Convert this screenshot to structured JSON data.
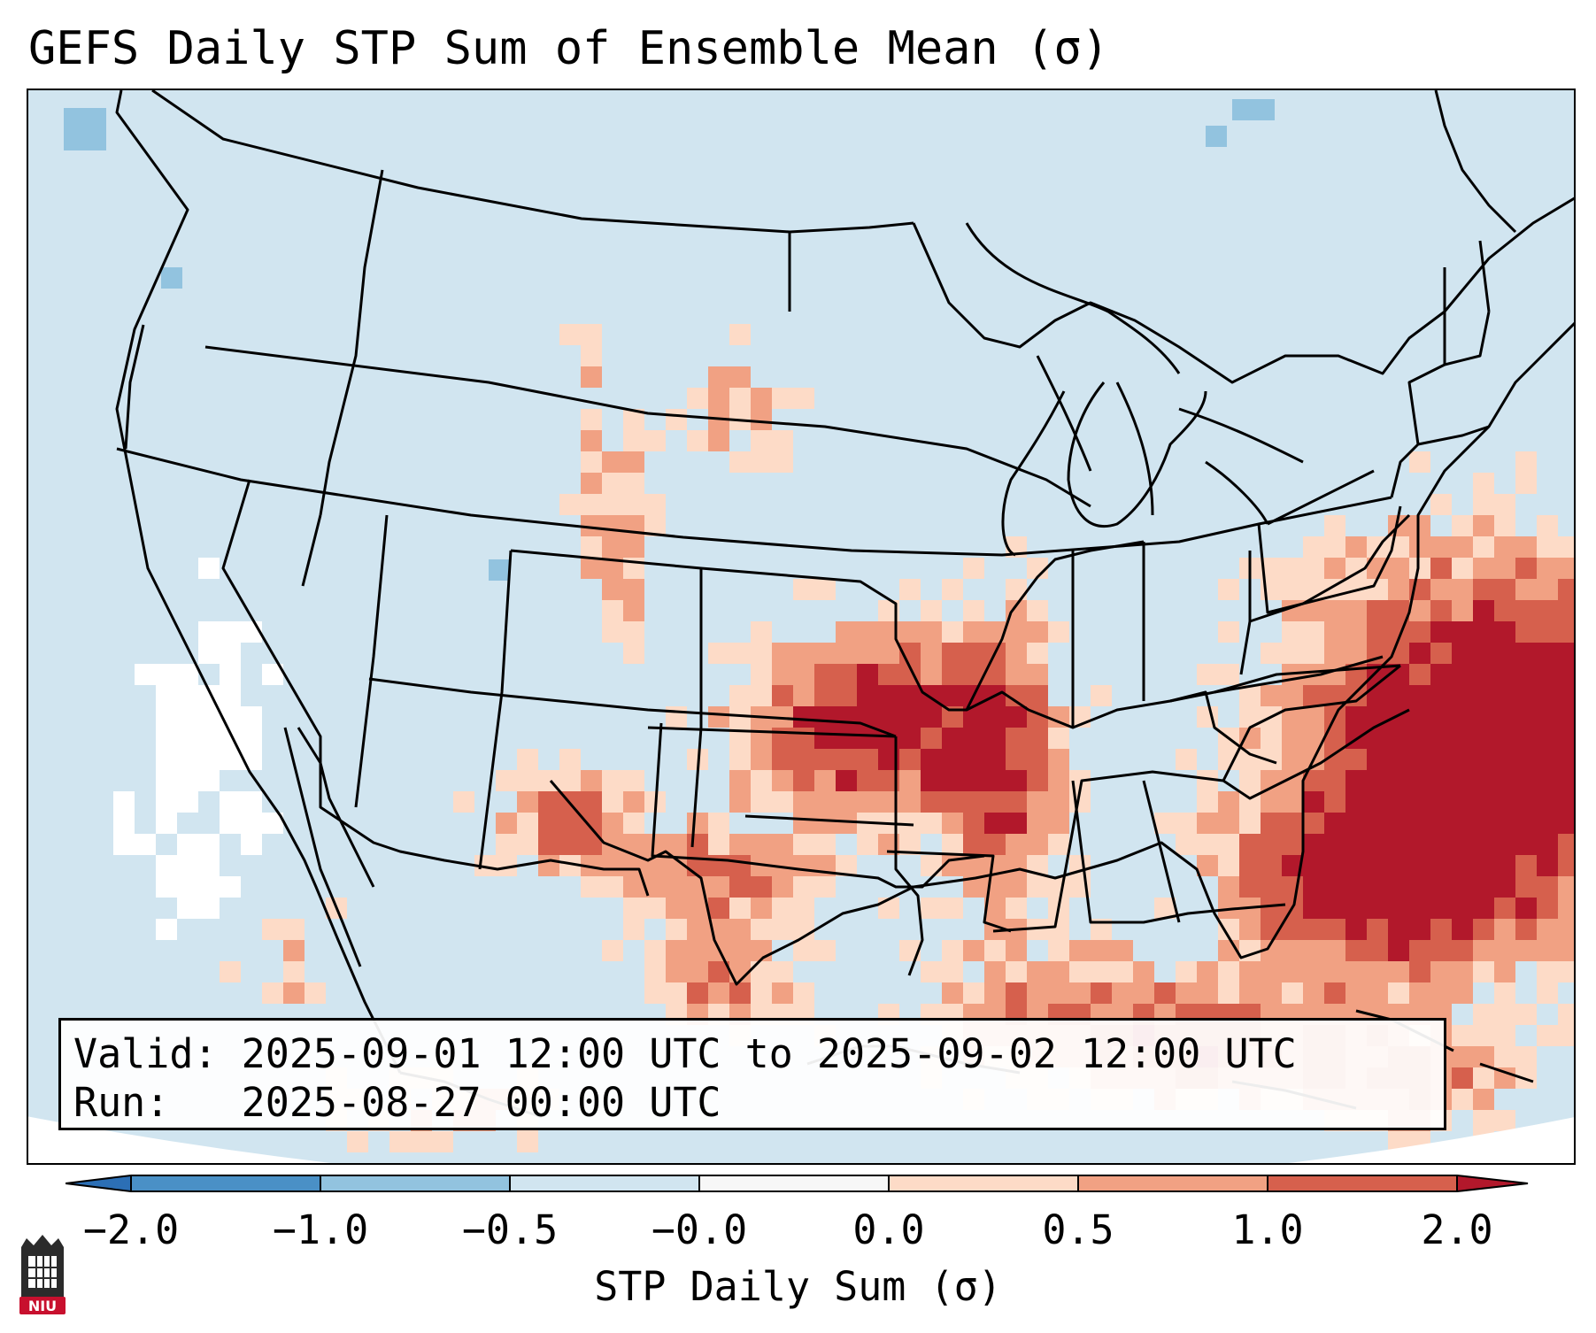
{
  "title": "GEFS Daily STP Sum of Ensemble Mean (σ)",
  "info": {
    "valid_label": "Valid:",
    "valid_value": "2025-09-01 12:00 UTC to 2025-09-02 12:00 UTC",
    "run_label": "Run:",
    "run_value": "2025-08-27 00:00 UTC"
  },
  "colorbar": {
    "label": "STP Daily Sum (σ)",
    "ticks": [
      "−2.0",
      "−1.0",
      "−0.5",
      "−0.0",
      "0.0",
      "0.5",
      "1.0",
      "2.0"
    ],
    "colors": {
      "below_min": "#2c6fb5",
      "n2_n1": "#4a90c6",
      "n1_n05": "#92c3df",
      "n05_0": "#d1e5f0",
      "zero": "#f7f7f7",
      "p0_p05": "#fddbc7",
      "p05_p1": "#f1a183",
      "p1_p2": "#d6604d",
      "above_max": "#b2182b"
    }
  },
  "map": {
    "region": "CONUS",
    "background_color": "#d1e5f0",
    "outline_color": "#000000"
  },
  "logo": {
    "text": "NIU",
    "color": "#c8102e"
  }
}
